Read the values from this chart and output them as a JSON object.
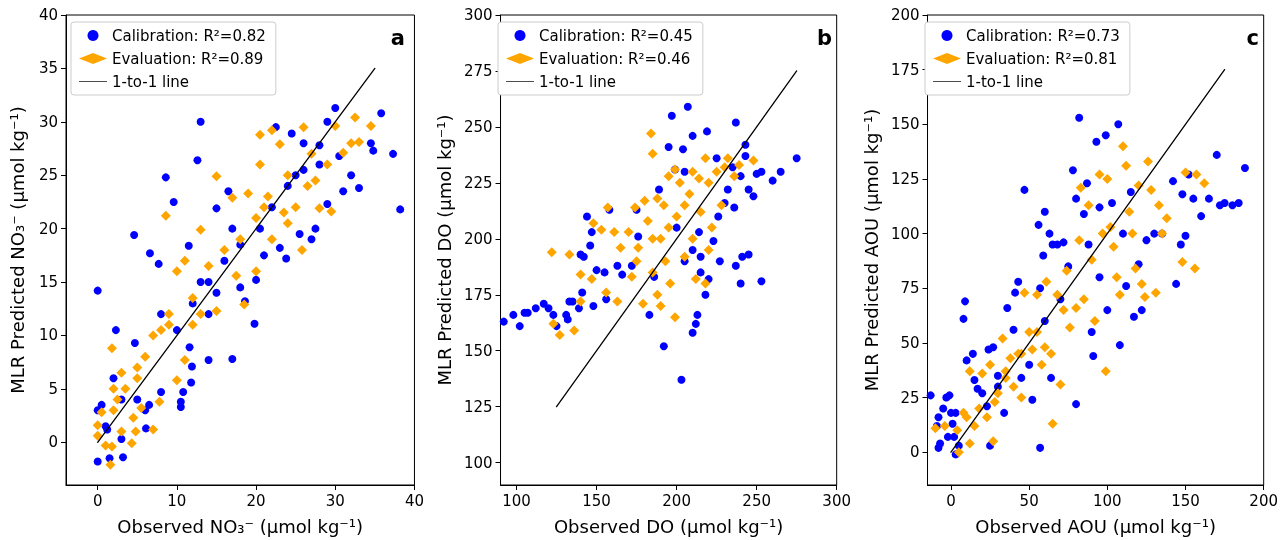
{
  "chart_data": [
    {
      "type": "scatter",
      "xlabel": "Observed NO₃⁻ (µmol kg⁻¹)",
      "ylabel": "MLR Predicted NO₃⁻ (µmol kg⁻¹)",
      "annotations": [
        "a"
      ],
      "legend": "top left",
      "grid": false,
      "xlim": [
        -4,
        40
      ],
      "xticks": [
        0,
        10,
        20,
        30,
        40
      ],
      "ylim": [
        -4,
        40
      ],
      "yticks": [
        0,
        5,
        10,
        15,
        20,
        25,
        30,
        35,
        40
      ],
      "series": [
        {
          "name": "Calibration: R²=0.82",
          "type": "scatter",
          "marker": "circle",
          "color": "#0000ff",
          "x": [
            0,
            0,
            0,
            1,
            0.5,
            1.2,
            1.5,
            2.3,
            3.2,
            3,
            2,
            3,
            4.6,
            4.7,
            5,
            6,
            6.1,
            6.6,
            6.5,
            7.7,
            8.6,
            8,
            9.6,
            10.5,
            10.5,
            10.8,
            11.5,
            11.6,
            11.9,
            11.8,
            12.6,
            13,
            13,
            14,
            14,
            15,
            15,
            17,
            16.5,
            18,
            18.6,
            19.8,
            20,
            21,
            22,
            22.5,
            23,
            23.8,
            24.5,
            25,
            25.5,
            26,
            27,
            27.5,
            28,
            29,
            30,
            30.5,
            31,
            32,
            33,
            34.5,
            35.8,
            34.8,
            37.3,
            38.2,
            28,
            29,
            20.5,
            17,
            8,
            10,
            12,
            14,
            16,
            18,
            24,
            26
          ],
          "values": [
            14.2,
            -1.8,
            3,
            1.5,
            3.5,
            1.2,
            -1.5,
            10.5,
            -1.4,
            0.3,
            6,
            4,
            19.4,
            9.3,
            4,
            3,
            1.3,
            17.7,
            3.5,
            16.7,
            24.8,
            4.7,
            22.5,
            3.8,
            3.3,
            4.7,
            18.4,
            8.9,
            7.1,
            5.6,
            26.4,
            30,
            15,
            7.7,
            12,
            21.9,
            14,
            7.8,
            23.5,
            14.5,
            13.2,
            11.1,
            15.2,
            17.5,
            22,
            29.5,
            18.2,
            17.2,
            28.9,
            25,
            19.5,
            25.5,
            19,
            20,
            26,
            22.3,
            31.3,
            26.8,
            23.5,
            25,
            23.8,
            28,
            30.8,
            27.3,
            27,
            21.8,
            27.8,
            30,
            20,
            20,
            12,
            10.5,
            13,
            15,
            17,
            18.5,
            24,
            28
          ]
        },
        {
          "name": "Evaluation: R²=0.89",
          "type": "scatter",
          "marker": "diamond",
          "color": "#ffa500",
          "x": [
            0,
            0,
            0.5,
            1,
            1.6,
            1.8,
            1.8,
            2,
            2.5,
            3,
            3,
            4.3,
            4.5,
            4.8,
            5,
            5.5,
            6,
            7,
            7,
            7.8,
            8,
            8.6,
            9,
            10,
            10,
            11,
            11,
            12,
            13,
            13,
            14,
            15,
            15,
            16,
            17,
            17.5,
            18.5,
            19,
            20,
            20,
            20.5,
            20.5,
            21,
            22,
            22,
            23,
            23.5,
            24,
            25,
            25.8,
            26,
            27,
            27.5,
            28,
            29,
            29.5,
            30,
            31,
            32,
            32.5,
            33,
            34.5,
            2,
            3.5,
            5,
            9,
            12,
            18,
            21.5,
            24,
            26.5
          ],
          "values": [
            1.6,
            0.6,
            2.8,
            -0.3,
            -2.1,
            -0.4,
            8.8,
            5,
            4,
            1,
            6.5,
            -0.1,
            2.3,
            1,
            6,
            3.2,
            8,
            10,
            1.2,
            3.8,
            10.5,
            21.2,
            12,
            16,
            5.8,
            17,
            7.7,
            13.5,
            12,
            19.9,
            16.5,
            24.9,
            12.3,
            18,
            22.9,
            15.6,
            12.9,
            23.3,
            21,
            16,
            28.8,
            26,
            22,
            29.2,
            19,
            27.9,
            21.5,
            20.5,
            22,
            18,
            29.5,
            27,
            24.5,
            21.9,
            26,
            21.6,
            29.6,
            27.1,
            28,
            30.4,
            28.1,
            29.6,
            3,
            5,
            7,
            11,
            11,
            19,
            23,
            25,
            24
          ]
        },
        {
          "name": "1-to-1 line",
          "type": "line",
          "marker": "none",
          "color": "#000000",
          "x": [
            0,
            35
          ],
          "values": [
            0,
            35
          ]
        }
      ]
    },
    {
      "type": "scatter",
      "xlabel": "Observed DO (µmol kg⁻¹)",
      "ylabel": "MLR Predicted DO (µmol kg⁻¹)",
      "annotations": [
        "b"
      ],
      "legend": "top left",
      "grid": false,
      "xlim": [
        90,
        300
      ],
      "xticks": [
        100,
        150,
        200,
        250,
        300
      ],
      "ylim": [
        90,
        300
      ],
      "yticks": [
        100,
        125,
        150,
        175,
        200,
        225,
        250,
        275,
        300
      ],
      "series": [
        {
          "name": "Calibration: R²=0.45",
          "type": "scatter",
          "marker": "circle",
          "color": "#0000ff",
          "x": [
            92,
            98,
            102,
            105,
            107,
            112,
            117,
            120,
            123,
            125,
            131,
            132,
            133,
            135,
            139,
            140,
            141,
            142,
            144,
            146,
            147,
            148,
            150,
            155,
            156,
            158,
            163,
            166,
            172,
            175,
            176,
            183,
            186,
            189,
            192,
            195,
            197,
            199,
            203,
            204,
            205,
            207,
            210,
            212,
            213,
            210,
            214,
            215,
            219,
            218,
            220,
            223,
            225,
            226,
            227,
            230,
            232,
            236,
            237,
            237,
            240,
            241,
            243,
            243,
            245,
            245,
            248,
            250,
            253,
            253,
            260,
            265,
            275,
            235,
            240,
            210,
            215,
            200,
            205
          ],
          "values": [
            163,
            166,
            161,
            167,
            167,
            169,
            171,
            169,
            166,
            161,
            166,
            164,
            172,
            172,
            169,
            193,
            176,
            192,
            210,
            197,
            203,
            170,
            186,
            185,
            173,
            213,
            188,
            184,
            188,
            213,
            201,
            166,
            183,
            222,
            152,
            241,
            255,
            231,
            137,
            240,
            230,
            259,
            158,
            162,
            166,
            246,
            203,
            192,
            248,
            175,
            182,
            199,
            236,
            210,
            190,
            216,
            222,
            214,
            188,
            252,
            180,
            192,
            242,
            237,
            222,
            193,
            219,
            229,
            181,
            230,
            226,
            230,
            236,
            232,
            228,
            195,
            185,
            205,
            190
          ]
        },
        {
          "name": "Evaluation: R²=0.46",
          "type": "scatter",
          "marker": "diamond",
          "color": "#ffa500",
          "x": [
            122,
            123,
            127,
            133,
            136,
            140,
            140,
            147,
            148,
            153,
            156,
            157,
            161,
            163,
            165,
            170,
            172,
            174,
            176,
            179,
            180,
            182,
            184,
            185,
            185,
            188,
            188,
            190,
            192,
            193,
            195,
            196,
            199,
            199,
            200,
            202,
            205,
            205,
            208,
            210,
            212,
            214,
            215,
            218,
            218,
            220,
            222,
            225,
            228,
            230,
            232,
            236,
            239,
            248,
            185,
            195,
            210,
            175,
            190,
            220
          ],
          "values": [
            194,
            162,
            157,
            193,
            159,
            184,
            172,
            182,
            207,
            204,
            176,
            214,
            203,
            172,
            196,
            203,
            183,
            214,
            196,
            171,
            217,
            208,
            247,
            238,
            200,
            218,
            175,
            170,
            215,
            190,
            228,
            180,
            165,
            231,
            210,
            225,
            215,
            192,
            220,
            200,
            182,
            227,
            212,
            236,
            180,
            225,
            205,
            230,
            215,
            232,
            236,
            228,
            233,
            235,
            185,
            205,
            230,
            190,
            200,
            195
          ]
        },
        {
          "name": "1-to-1 line",
          "type": "line",
          "marker": "none",
          "color": "#000000",
          "x": [
            125,
            275
          ],
          "values": [
            125,
            275
          ]
        }
      ]
    },
    {
      "type": "scatter",
      "xlabel": "Observed AOU (µmol kg⁻¹)",
      "ylabel": "MLR Predicted AOU (µmol kg⁻¹)",
      "annotations": [
        "c"
      ],
      "legend": "top left",
      "grid": false,
      "xlim": [
        -15,
        200
      ],
      "xticks": [
        0,
        50,
        100,
        150,
        200
      ],
      "ylim": [
        -15,
        200
      ],
      "yticks": [
        0,
        25,
        50,
        75,
        100,
        125,
        150,
        175,
        200
      ],
      "series": [
        {
          "name": "Calibration: R²=0.73",
          "type": "scatter",
          "marker": "circle",
          "color": "#0000ff",
          "x": [
            -13,
            -9,
            -8,
            -8,
            -7,
            -5,
            -3,
            -2,
            -1,
            0,
            1,
            2,
            3,
            3,
            5,
            8,
            9,
            10,
            14,
            15,
            17,
            20,
            23,
            24,
            25,
            27,
            30,
            34,
            36,
            40,
            41,
            43,
            45,
            47,
            50,
            52,
            56,
            57,
            57,
            59,
            60,
            63,
            64,
            65,
            68,
            72,
            75,
            78,
            80,
            80,
            82,
            85,
            87,
            88,
            90,
            91,
            93,
            95,
            99,
            100,
            103,
            107,
            108,
            110,
            112,
            115,
            117,
            120,
            122,
            125,
            130,
            135,
            142,
            144,
            147,
            148,
            150,
            152,
            155,
            160,
            165,
            170,
            172,
            175,
            180,
            184,
            188,
            95,
            70,
            60,
            30
          ],
          "values": [
            26,
            12,
            16,
            2,
            4,
            20,
            25,
            7,
            26,
            18,
            13,
            7,
            -1,
            18,
            3,
            61,
            69,
            42,
            45,
            33,
            29,
            27,
            21,
            47,
            3,
            48,
            35,
            18,
            66,
            56,
            73,
            78,
            34,
            120,
            40,
            24,
            104,
            2,
            75,
            90,
            110,
            100,
            34,
            95,
            95,
            96,
            85,
            129,
            22,
            116,
            153,
            109,
            123,
            95,
            55,
            44,
            142,
            112,
            145,
            65,
            114,
            150,
            49,
            100,
            76,
            119,
            62,
            86,
            65,
            97,
            100,
            100,
            124,
            77,
            95,
            118,
            99,
            127,
            116,
            108,
            116,
            136,
            113,
            114,
            113,
            114,
            130,
            80,
            70,
            60,
            30
          ]
        },
        {
          "name": "Evaluation: R²=0.81",
          "type": "scatter",
          "marker": "diamond",
          "color": "#ffa500",
          "x": [
            -10,
            -4,
            4,
            5,
            8,
            10,
            12,
            12,
            15,
            18,
            20,
            23,
            25,
            27,
            28,
            30,
            33,
            35,
            38,
            40,
            43,
            45,
            47,
            50,
            52,
            55,
            58,
            60,
            61,
            64,
            65,
            68,
            70,
            72,
            74,
            76,
            80,
            82,
            83,
            85,
            88,
            90,
            92,
            95,
            97,
            99,
            100,
            102,
            104,
            106,
            108,
            110,
            112,
            114,
            116,
            118,
            120,
            122,
            124,
            126,
            128,
            131,
            133,
            135,
            138,
            148,
            150,
            156,
            157,
            162,
            55,
            45,
            35
          ],
          "values": [
            11,
            12,
            10,
            0,
            18,
            16,
            37,
            4,
            12,
            20,
            36,
            16,
            40,
            5,
            23,
            27,
            52,
            34,
            43,
            30,
            45,
            25,
            73,
            55,
            47,
            72,
            40,
            48,
            78,
            45,
            13,
            72,
            31,
            65,
            83,
            57,
            66,
            97,
            121,
            70,
            113,
            88,
            60,
            127,
            100,
            37,
            125,
            103,
            94,
            80,
            72,
            140,
            131,
            110,
            100,
            84,
            122,
            77,
            71,
            133,
            120,
            73,
            113,
            100,
            107,
            87,
            128,
            84,
            127,
            123,
            55,
            45,
            37
          ]
        },
        {
          "name": "1-to-1 line",
          "type": "line",
          "marker": "none",
          "color": "#000000",
          "x": [
            0,
            175
          ],
          "values": [
            0,
            175
          ]
        }
      ]
    }
  ]
}
